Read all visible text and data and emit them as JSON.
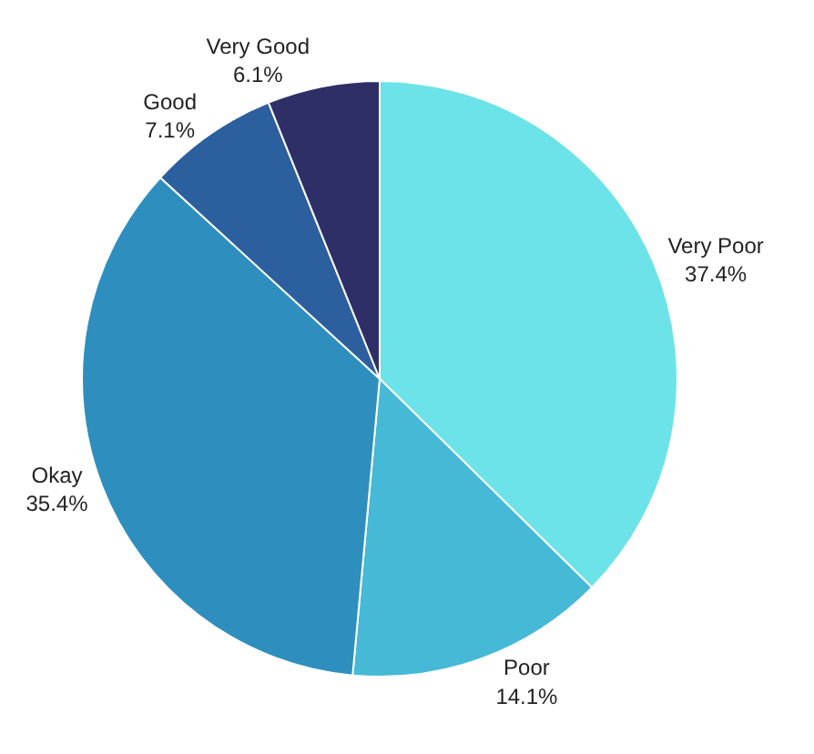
{
  "chart_data": {
    "type": "pie",
    "categories": [
      "Very Poor",
      "Poor",
      "Okay",
      "Good",
      "Very Good"
    ],
    "values": [
      37.4,
      14.1,
      35.4,
      7.1,
      6.1
    ],
    "value_labels": [
      "37.4%",
      "14.1%",
      "35.4%",
      "7.1%",
      "6.1%"
    ],
    "colors": [
      "#6ce3e8",
      "#45b9d6",
      "#2e8fbf",
      "#2c5f9e",
      "#2e2f66"
    ],
    "legend": false
  }
}
